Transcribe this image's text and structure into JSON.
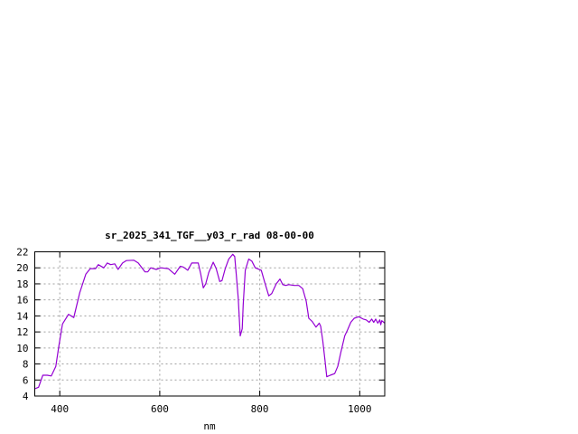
{
  "chart_data": {
    "type": "line",
    "title": "sr_2025_341_TGF__y03_r_rad 08-00-00",
    "xlabel": "nm",
    "ylabel": "",
    "xlim": [
      350,
      1050
    ],
    "ylim": [
      4,
      22
    ],
    "xticks": [
      400,
      600,
      800,
      1000
    ],
    "yticks": [
      4,
      6,
      8,
      10,
      12,
      14,
      16,
      18,
      20,
      22
    ],
    "grid": true,
    "series": [
      {
        "color": "#9400d3",
        "x": [
          350,
          357.5,
          366,
          375,
          383,
          392,
          398,
          405.5,
          417.5,
          428,
          440,
          452,
          461,
          471.5,
          477,
          488,
          495,
          502,
          510,
          516.5,
          525.5,
          533,
          548,
          557,
          570.5,
          576,
          582,
          593,
          602,
          617,
          630,
          641,
          647,
          656,
          664,
          677,
          682,
          687,
          692,
          698,
          707,
          713,
          720,
          724.5,
          731,
          738,
          746,
          750,
          753,
          757,
          761,
          765,
          767,
          771,
          778,
          784,
          791,
          803,
          810,
          818,
          824,
          833,
          840.5,
          846,
          852,
          858,
          869,
          878,
          886,
          893,
          898,
          905,
          912.5,
          919,
          922,
          926,
          930.5,
          934,
          941,
          950,
          956,
          962,
          970,
          976,
          982,
          989,
          998,
          1007,
          1013,
          1019,
          1024,
          1028,
          1032,
          1036,
          1040,
          1042,
          1044,
          1050
        ],
        "y": [
          4.9,
          5.1,
          6.6,
          6.6,
          6.5,
          7.7,
          10.2,
          13.0,
          14.2,
          13.8,
          16.9,
          19.2,
          19.9,
          19.9,
          20.4,
          20.0,
          20.6,
          20.4,
          20.5,
          19.8,
          20.6,
          20.9,
          20.95,
          20.6,
          19.5,
          19.5,
          20.0,
          19.8,
          20.0,
          19.9,
          19.2,
          20.2,
          20.1,
          19.7,
          20.6,
          20.6,
          19.2,
          17.5,
          18.0,
          19.4,
          20.7,
          19.9,
          18.3,
          18.4,
          19.9,
          21.1,
          21.7,
          21.4,
          19.2,
          16.2,
          11.5,
          12.4,
          15.4,
          19.7,
          21.1,
          20.85,
          20.0,
          19.7,
          18.2,
          16.5,
          16.8,
          18.0,
          18.6,
          17.9,
          17.8,
          17.9,
          17.8,
          17.8,
          17.4,
          15.8,
          13.7,
          13.3,
          12.6,
          13.1,
          12.7,
          10.9,
          8.5,
          6.4,
          6.6,
          6.8,
          7.7,
          9.4,
          11.5,
          12.3,
          13.2,
          13.7,
          13.9,
          13.6,
          13.5,
          13.2,
          13.6,
          13.2,
          13.6,
          13.1,
          13.5,
          12.9,
          13.4,
          13.1
        ]
      }
    ]
  }
}
